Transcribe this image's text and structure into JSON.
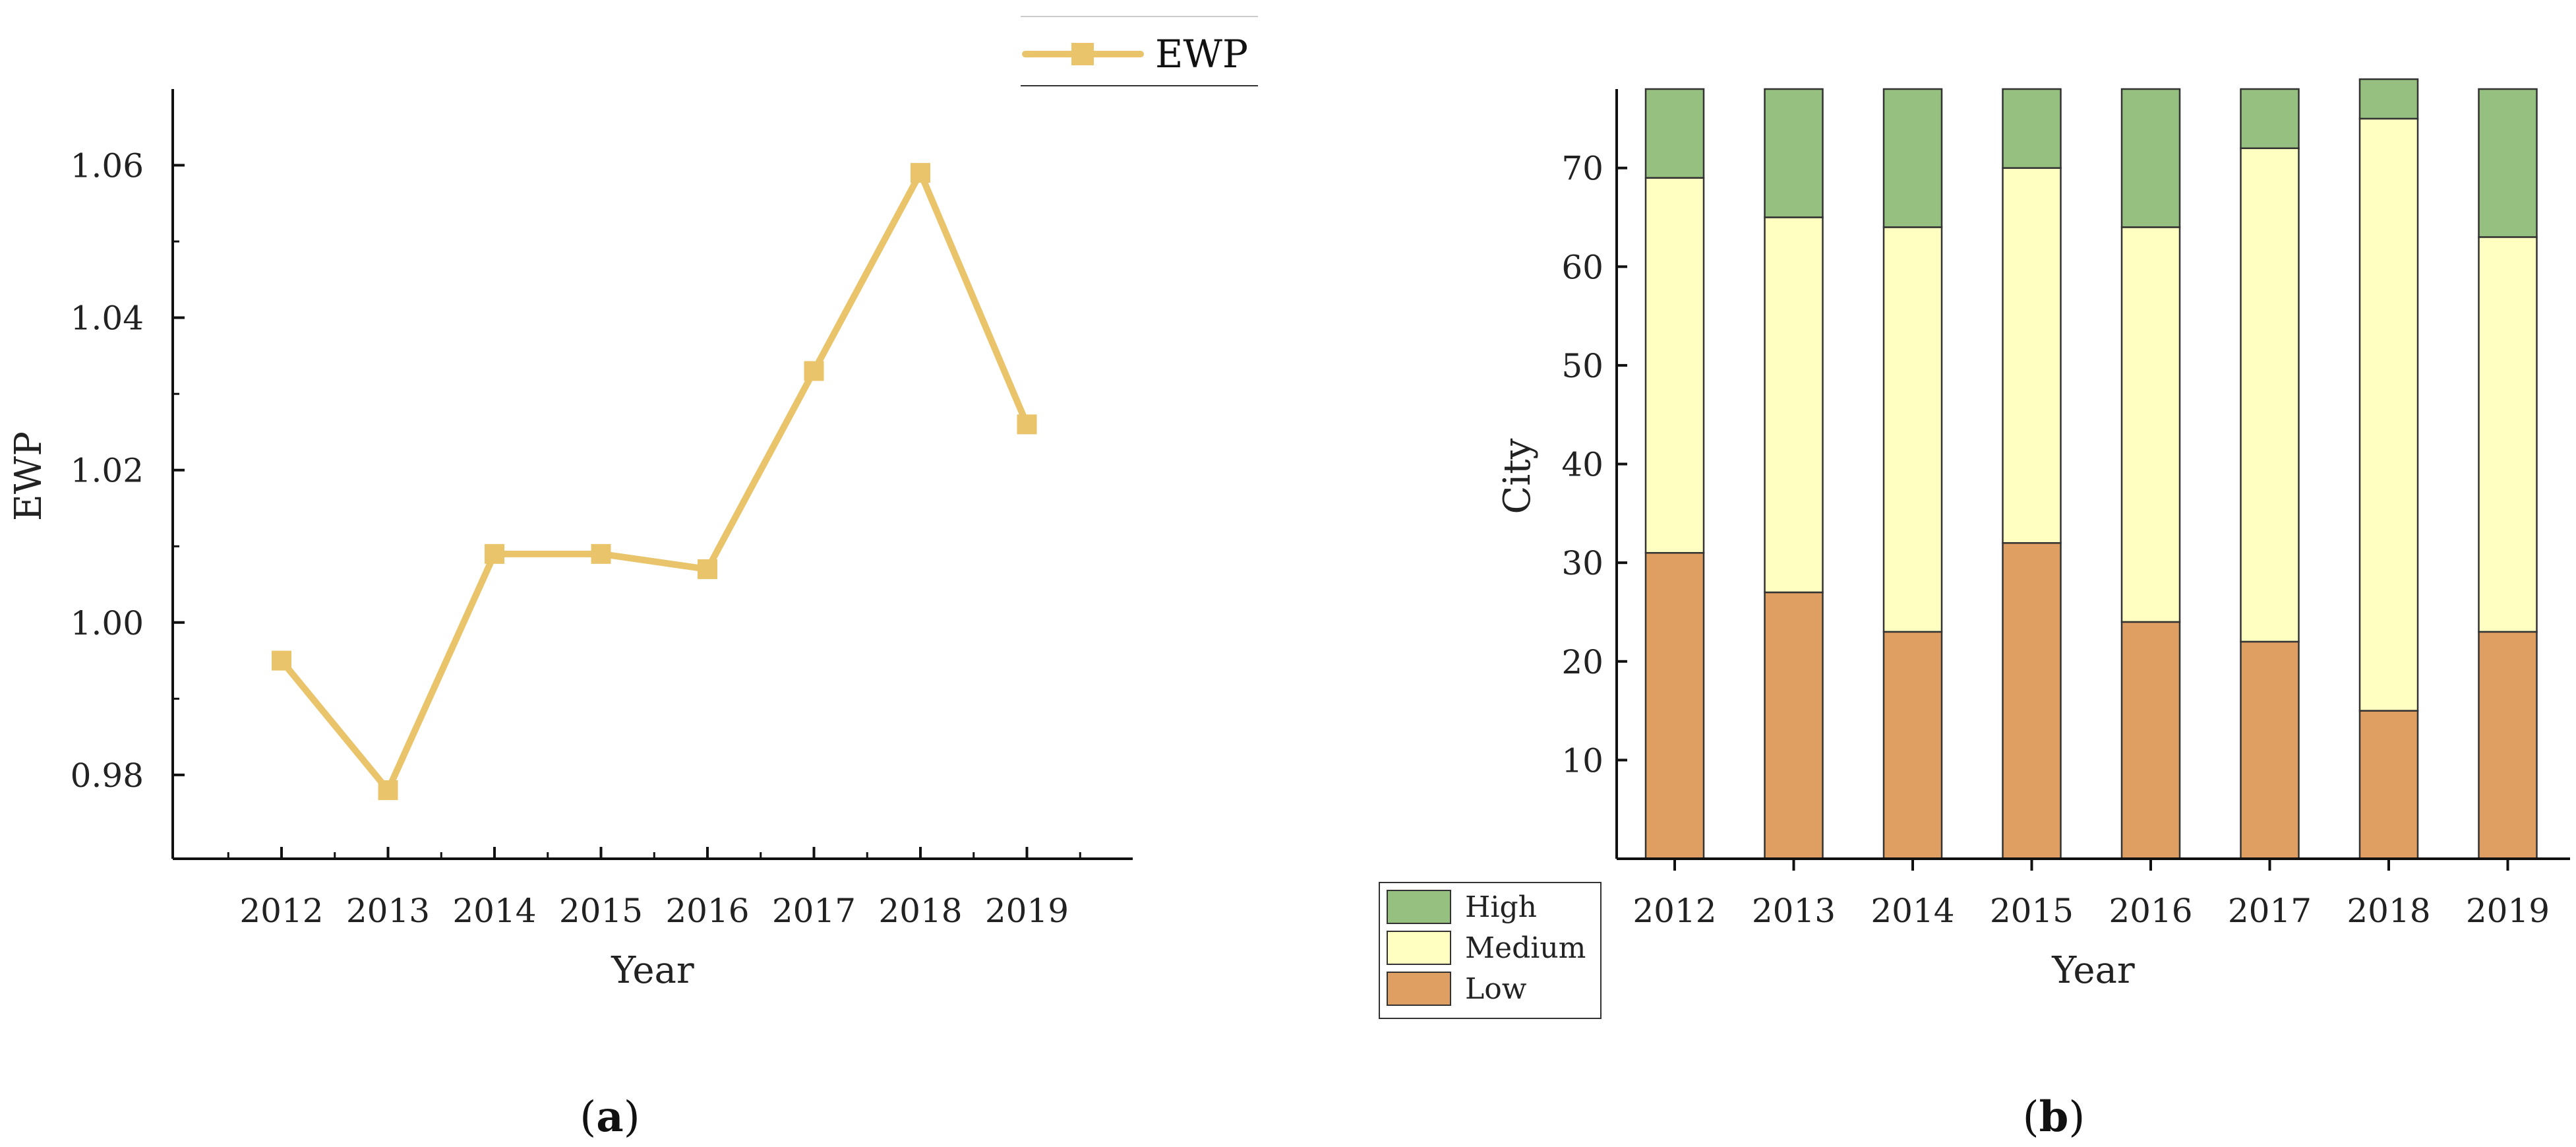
{
  "chart_data": [
    {
      "panel": "a",
      "type": "line",
      "title": "",
      "xlabel": "Year",
      "ylabel": "EWP",
      "categories": [
        "2012",
        "2013",
        "2014",
        "2015",
        "2016",
        "2017",
        "2018",
        "2019"
      ],
      "series": [
        {
          "name": "EWP",
          "values": [
            0.995,
            0.978,
            1.009,
            1.009,
            1.007,
            1.033,
            1.059,
            1.026
          ],
          "color": "#e9c46a"
        }
      ],
      "ylim": [
        0.969,
        1.07
      ],
      "yticks": [
        "0.98",
        "1.00",
        "1.02",
        "1.04",
        "1.06"
      ],
      "ytick_values": [
        0.98,
        1.0,
        1.02,
        1.04,
        1.06
      ],
      "legend": "top-right",
      "grid": false,
      "caption": "(a)"
    },
    {
      "panel": "b",
      "type": "bar",
      "stacked": true,
      "title": "",
      "xlabel": "Year",
      "ylabel": "City",
      "categories": [
        "2012",
        "2013",
        "2014",
        "2015",
        "2016",
        "2017",
        "2018",
        "2019"
      ],
      "series": [
        {
          "name": "Low",
          "values": [
            31,
            27,
            23,
            32,
            24,
            22,
            15,
            23
          ],
          "color": "#df9f62"
        },
        {
          "name": "Medium",
          "values": [
            38,
            38,
            41,
            38,
            40,
            50,
            60,
            40
          ],
          "color": "#ffffc2"
        },
        {
          "name": "High",
          "values": [
            9,
            13,
            14,
            8,
            14,
            6,
            4,
            15
          ],
          "color": "#95c07f"
        }
      ],
      "ylim": [
        0,
        78
      ],
      "yticks": [
        "10",
        "20",
        "30",
        "40",
        "50",
        "60",
        "70"
      ],
      "ytick_values": [
        10,
        20,
        30,
        40,
        50,
        60,
        70
      ],
      "legend_order": [
        "High",
        "Medium",
        "Low"
      ],
      "legend": "bottom-left",
      "grid": false,
      "caption": "(b)"
    }
  ]
}
